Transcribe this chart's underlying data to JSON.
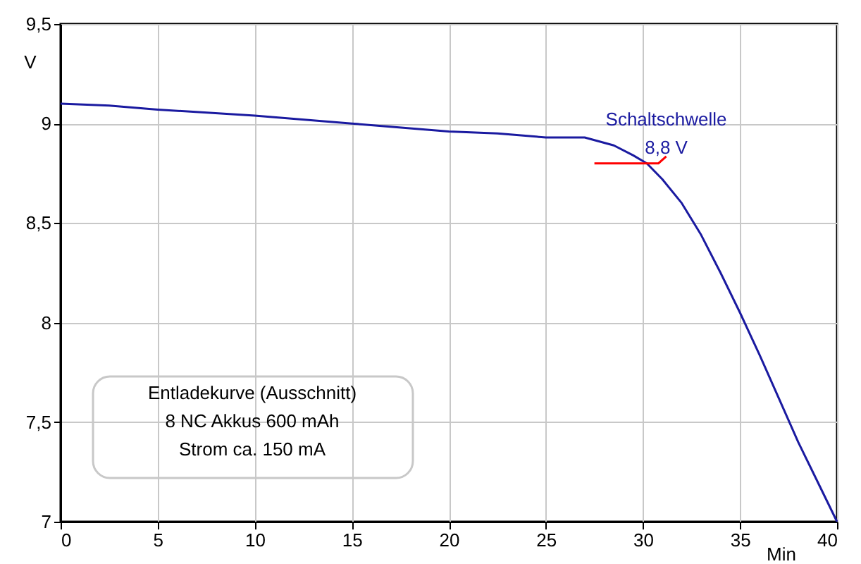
{
  "chart_data": {
    "type": "line",
    "x": [
      0,
      2.5,
      5,
      10,
      15,
      20,
      22.5,
      25,
      27,
      28.5,
      29.5,
      30.2,
      31,
      32,
      33,
      34,
      35,
      36,
      37,
      38,
      39,
      40
    ],
    "series": [
      {
        "color": "#1a1aa0",
        "values": [
          9.1,
          9.09,
          9.07,
          9.04,
          9.0,
          8.96,
          8.95,
          8.93,
          8.93,
          8.89,
          8.84,
          8.8,
          8.72,
          8.6,
          8.44,
          8.25,
          8.05,
          7.84,
          7.62,
          7.4,
          7.2,
          7.0
        ]
      }
    ],
    "xlabel": "Min",
    "ylabel": "V",
    "xlim": [
      0,
      40
    ],
    "xticks": [
      0,
      5,
      10,
      15,
      20,
      25,
      30,
      35,
      40
    ],
    "ylim": [
      7,
      9.5
    ],
    "yticks": [
      7,
      {
        "value": 7.5,
        "label": "7,5"
      },
      8,
      {
        "value": 8.5,
        "label": "8,5"
      },
      9,
      {
        "value": 9.5,
        "label": "9,5"
      }
    ],
    "ref_lines": [
      {
        "axis": "y",
        "value": 8.8,
        "color": "#ff0000"
      }
    ],
    "annotations": [
      {
        "text": "Schaltschwelle\n8,8 V",
        "x": 30.2,
        "y": 8.8
      },
      "Entladekurve (Ausschnitt)\n8 NC Akkus 600 mAh\nStrom ca. 150 mA"
    ],
    "grid": true,
    "marker": "none",
    "line_style": "solid"
  }
}
